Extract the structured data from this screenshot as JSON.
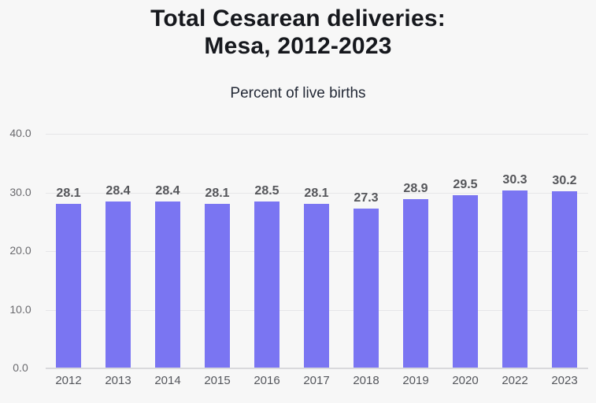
{
  "header": {
    "title_line1": "Total Cesarean deliveries:",
    "title_line2": "Mesa, 2012-2023",
    "subtitle": "Percent of live births"
  },
  "chart_data": {
    "type": "bar",
    "title": "Total Cesarean deliveries: Mesa, 2012-2023",
    "subtitle": "Percent of live births",
    "ylabel": "Percent of live births",
    "xlabel": "",
    "categories": [
      "2012",
      "2013",
      "2014",
      "2015",
      "2016",
      "2017",
      "2018",
      "2019",
      "2020",
      "2022",
      "2023"
    ],
    "values": [
      28.1,
      28.4,
      28.4,
      28.1,
      28.5,
      28.1,
      27.3,
      28.9,
      29.5,
      30.3,
      30.2
    ],
    "value_labels": [
      "28.1",
      "28.4",
      "28.4",
      "28.1",
      "28.5",
      "28.1",
      "27.3",
      "28.9",
      "29.5",
      "30.3",
      "30.2"
    ],
    "ylim": [
      0,
      40
    ],
    "yticks": [
      {
        "value": 0,
        "label": "0.0"
      },
      {
        "value": 10,
        "label": "10.0"
      },
      {
        "value": 20,
        "label": "20.0"
      },
      {
        "value": 30,
        "label": "30.0"
      },
      {
        "value": 40,
        "label": "40.0"
      }
    ],
    "grid": "horizontal",
    "legend": "none",
    "colors": {
      "bar": "#7a75f2",
      "background": "#f7f7f7",
      "title_text": "#16181d",
      "subtitle_text": "#232936",
      "value_label_text": "#55565a",
      "axis_tick_text": "#6a6a6e",
      "gridline": "#e6e6e8",
      "baseline": "#d9d9dc"
    }
  }
}
